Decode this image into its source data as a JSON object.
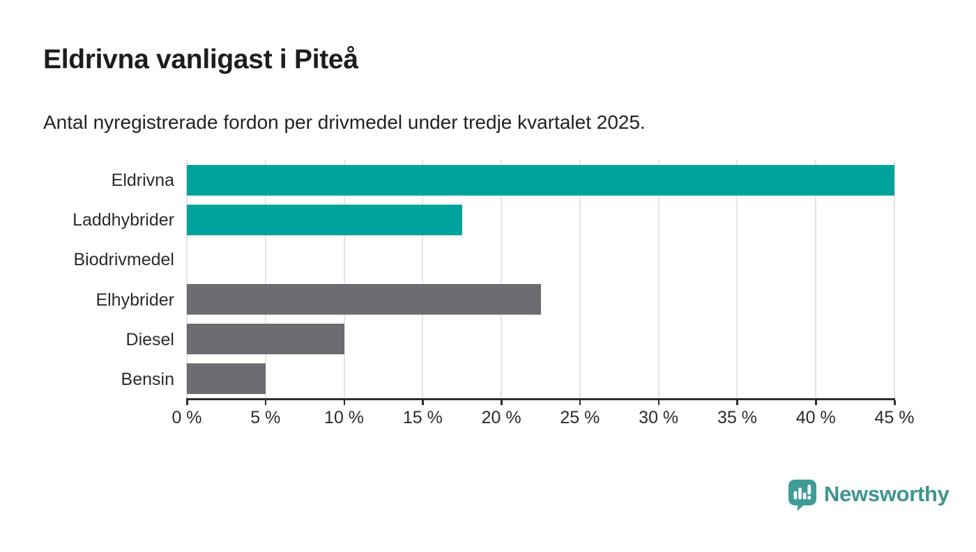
{
  "header": {
    "title": "Eldrivna vanligast i Piteå",
    "subtitle": "Antal nyregistrerade fordon per drivmedel under tredje kvartalet 2025."
  },
  "chart_data": {
    "type": "bar",
    "orientation": "horizontal",
    "title": "Eldrivna vanligast i Piteå",
    "subtitle": "Antal nyregistrerade fordon per drivmedel under tredje kvartalet 2025.",
    "categories": [
      "Eldrivna",
      "Laddhybrider",
      "Biodrivmedel",
      "Elhybrider",
      "Diesel",
      "Bensin"
    ],
    "values": [
      45,
      17.5,
      0,
      22.5,
      10,
      5
    ],
    "unit": "%",
    "xlim": [
      0,
      45
    ],
    "xticks": [
      0,
      5,
      10,
      15,
      20,
      25,
      30,
      35,
      40,
      45
    ],
    "xtick_labels": [
      "0 %",
      "5 %",
      "10 %",
      "15 %",
      "20 %",
      "25 %",
      "30 %",
      "35 %",
      "40 %",
      "45 %"
    ],
    "bar_colors": [
      "#00a39b",
      "#00a39b",
      "#6c6c72",
      "#6c6c72",
      "#6c6c72",
      "#6c6c72"
    ],
    "grid": true,
    "legend": false,
    "ylabel": "",
    "xlabel": ""
  },
  "colors": {
    "teal": "#00a39b",
    "gray": "#6c6c72",
    "axis": "#2d2d2d",
    "gridline": "#e4e4e4",
    "text": "#2b2b2b",
    "logo_bubble": "#3e9c97",
    "logo_text": "#3f948e"
  },
  "footer": {
    "brand": "Newsworthy",
    "logo_icon": "speech-bubble-bar-chart-icon"
  }
}
